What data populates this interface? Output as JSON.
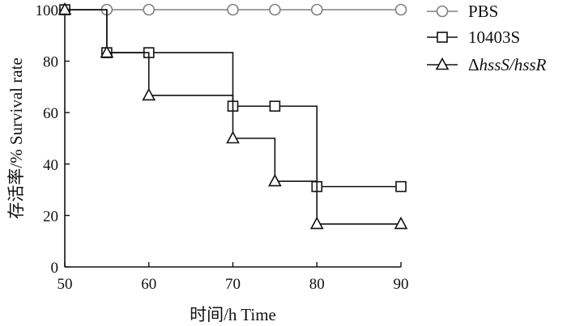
{
  "chart_data": {
    "type": "line",
    "step": true,
    "xlabel": "时间/h Time",
    "ylabel": "存活率/%  Survival rate",
    "xlim": [
      50,
      90
    ],
    "ylim": [
      0,
      100
    ],
    "xticks": [
      50,
      60,
      70,
      80,
      90
    ],
    "yticks": [
      0,
      20,
      40,
      60,
      80,
      100
    ],
    "grid": false,
    "legend_position": "top-right",
    "series": [
      {
        "name": "PBS",
        "marker": "circle",
        "color": "#808080",
        "x": [
          50,
          55,
          60,
          70,
          75,
          80,
          90
        ],
        "y": [
          100,
          100,
          100,
          100,
          100,
          100,
          100
        ]
      },
      {
        "name": "10403S",
        "marker": "square",
        "color": "#111111",
        "x": [
          50,
          55,
          60,
          70,
          75,
          80,
          90
        ],
        "y": [
          100,
          83.3,
          83.3,
          62.5,
          62.5,
          31.25,
          31.25
        ]
      },
      {
        "name": "ΔhssS/hssR",
        "marker": "triangle",
        "color": "#111111",
        "x": [
          50,
          55,
          60,
          70,
          75,
          80,
          90
        ],
        "y": [
          100,
          83.3,
          66.7,
          50,
          33.3,
          16.7,
          16.7
        ]
      }
    ]
  }
}
